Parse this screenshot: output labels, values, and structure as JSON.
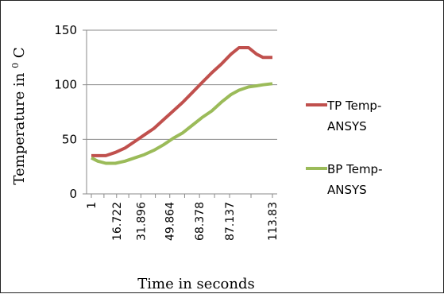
{
  "chart_data": {
    "type": "line",
    "xlabel": "Time in seconds",
    "ylabel_main": "Temperature in ",
    "ylabel_sup": "0",
    "ylabel_unit": " C",
    "ylim": [
      0,
      150
    ],
    "yticks": [
      "0",
      "50",
      "100",
      "150"
    ],
    "x": [
      1,
      8.86,
      16.722,
      24.31,
      31.896,
      40.88,
      49.864,
      59.12,
      68.378,
      77.76,
      87.137,
      100.48,
      113.83
    ],
    "xtick_labels": [
      "1",
      "16.722",
      "31.896",
      "49.864",
      "68.378",
      "87.137",
      "113.83"
    ],
    "grid": "horizontal",
    "legend_position": "right",
    "series": [
      {
        "name_lines": [
          "TP Temp-",
          "ANSYS"
        ],
        "color": "#c0504d",
        "points": [
          [
            1,
            35
          ],
          [
            4,
            35
          ],
          [
            10,
            35
          ],
          [
            16,
            38
          ],
          [
            22,
            42
          ],
          [
            28,
            48
          ],
          [
            34,
            54
          ],
          [
            40,
            60
          ],
          [
            46,
            68
          ],
          [
            52,
            76
          ],
          [
            58,
            84
          ],
          [
            64,
            93
          ],
          [
            70,
            102
          ],
          [
            76,
            111
          ],
          [
            82,
            119
          ],
          [
            88,
            128
          ],
          [
            93,
            134
          ],
          [
            99,
            134
          ],
          [
            104,
            128
          ],
          [
            108,
            125
          ],
          [
            113.83,
            125
          ]
        ]
      },
      {
        "name_lines": [
          "BP Temp-",
          "ANSYS"
        ],
        "color": "#9bbb59",
        "points": [
          [
            1,
            33
          ],
          [
            5,
            30
          ],
          [
            10,
            28
          ],
          [
            16,
            28
          ],
          [
            22,
            30
          ],
          [
            28,
            33
          ],
          [
            34,
            36
          ],
          [
            40,
            40
          ],
          [
            46,
            45
          ],
          [
            52,
            51
          ],
          [
            58,
            56
          ],
          [
            64,
            63
          ],
          [
            70,
            70
          ],
          [
            76,
            76
          ],
          [
            82,
            84
          ],
          [
            88,
            91
          ],
          [
            93,
            95
          ],
          [
            99,
            98
          ],
          [
            104,
            99
          ],
          [
            108,
            100
          ],
          [
            113.83,
            101
          ]
        ]
      }
    ]
  }
}
